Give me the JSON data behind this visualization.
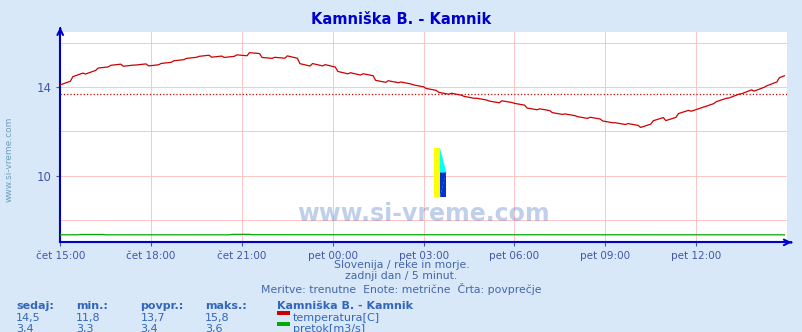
{
  "title": "Kamniška B. - Kamnik",
  "title_color": "#0000cc",
  "bg_color": "#d8e8f8",
  "plot_bg_color": "#ffffff",
  "grid_color": "#ffbbbb",
  "xlabel_color": "#4455aa",
  "ylabel_color": "#4455aa",
  "xlim": [
    0,
    288
  ],
  "ylim": [
    7.0,
    16.5
  ],
  "yticks": [
    10,
    14
  ],
  "xtick_labels": [
    "čet 15:00",
    "čet 18:00",
    "čet 21:00",
    "pet 00:00",
    "pet 03:00",
    "pet 06:00",
    "pet 09:00",
    "pet 12:00"
  ],
  "xtick_positions": [
    0,
    36,
    72,
    108,
    144,
    180,
    216,
    252
  ],
  "avg_temp": 13.7,
  "avg_flow_scaled": 7.08,
  "watermark": "www.si-vreme.com",
  "watermark_side": "www.si-vreme.com",
  "footer_line1": "Slovenija / reke in morje.",
  "footer_line2": "zadnji dan / 5 minut.",
  "footer_line3": "Meritve: trenutne  Enote: metrične  Črta: povprečje",
  "footer_color": "#4466aa",
  "legend_title": "Kamniška B. - Kamnik",
  "legend_items": [
    "temperatura[C]",
    "pretok[m3/s]"
  ],
  "legend_colors": [
    "#cc0000",
    "#00aa00"
  ],
  "stats_headers": [
    "sedaj:",
    "min.:",
    "povpr.:",
    "maks.:"
  ],
  "stats_temp": [
    "14,5",
    "11,8",
    "13,7",
    "15,8"
  ],
  "stats_flow": [
    "3,4",
    "3,3",
    "3,4",
    "3,6"
  ],
  "temp_color": "#cc0000",
  "flow_color": "#00aa00",
  "axis_color": "#0000cc",
  "watermark_color": "#3366bb",
  "side_label_color": "#4488aa"
}
